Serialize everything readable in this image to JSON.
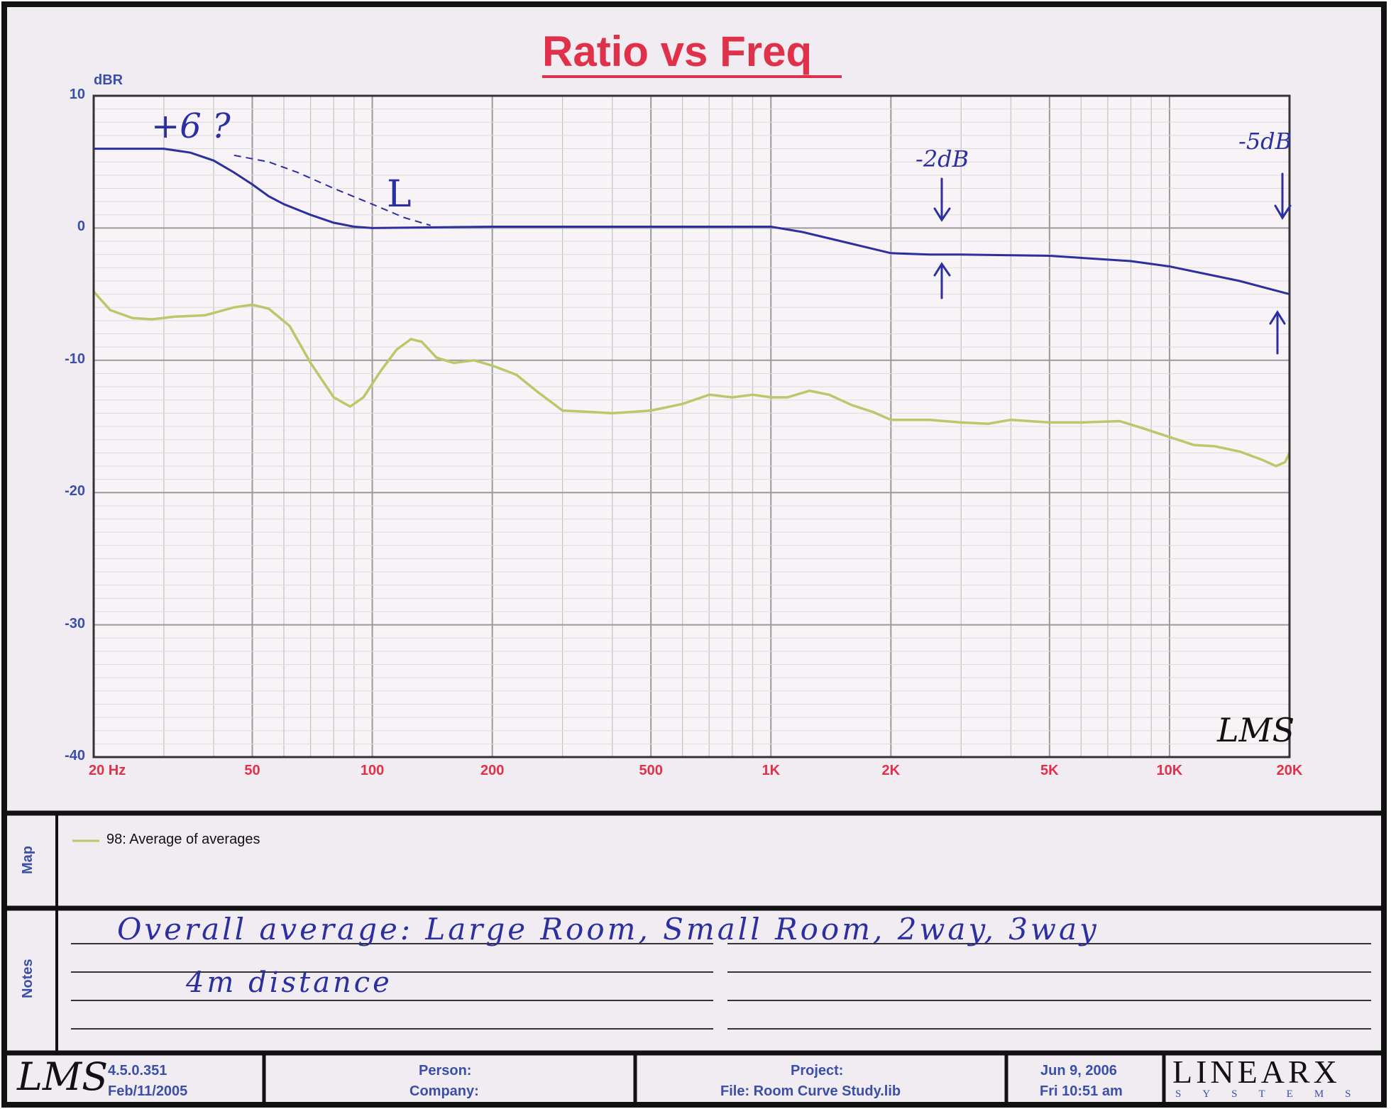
{
  "chart_data": {
    "type": "line",
    "title": "Ratio vs Freq",
    "ylabel": "dBR",
    "x_scale": "log",
    "xlim": [
      20,
      20000
    ],
    "ylim": [
      -40,
      10
    ],
    "x_ticks": [
      20,
      50,
      100,
      200,
      500,
      1000,
      2000,
      5000,
      10000,
      20000
    ],
    "x_tick_labels": [
      "20  Hz",
      "50",
      "100",
      "200",
      "500",
      "1K",
      "2K",
      "5K",
      "10K",
      "20K"
    ],
    "y_ticks": [
      10,
      0,
      -10,
      -20,
      -30,
      -40
    ],
    "y_tick_labels": [
      "10",
      "0",
      "-10",
      "-20",
      "-30",
      "-40"
    ],
    "grid": true,
    "series": [
      {
        "name": "98: Average of averages",
        "color": "#b8c96a",
        "points": [
          [
            20,
            -4.8
          ],
          [
            22,
            -6.2
          ],
          [
            25,
            -6.8
          ],
          [
            28,
            -6.9
          ],
          [
            32,
            -6.7
          ],
          [
            38,
            -6.6
          ],
          [
            45,
            -6.0
          ],
          [
            50,
            -5.8
          ],
          [
            55,
            -6.1
          ],
          [
            62,
            -7.4
          ],
          [
            70,
            -10.2
          ],
          [
            80,
            -12.8
          ],
          [
            88,
            -13.5
          ],
          [
            95,
            -12.8
          ],
          [
            105,
            -10.8
          ],
          [
            115,
            -9.2
          ],
          [
            125,
            -8.4
          ],
          [
            133,
            -8.6
          ],
          [
            145,
            -9.8
          ],
          [
            160,
            -10.2
          ],
          [
            180,
            -10.0
          ],
          [
            200,
            -10.4
          ],
          [
            230,
            -11.1
          ],
          [
            260,
            -12.4
          ],
          [
            300,
            -13.8
          ],
          [
            350,
            -13.9
          ],
          [
            400,
            -14.0
          ],
          [
            450,
            -13.9
          ],
          [
            500,
            -13.8
          ],
          [
            600,
            -13.3
          ],
          [
            700,
            -12.6
          ],
          [
            800,
            -12.8
          ],
          [
            900,
            -12.6
          ],
          [
            1000,
            -12.8
          ],
          [
            1100,
            -12.8
          ],
          [
            1250,
            -12.3
          ],
          [
            1400,
            -12.6
          ],
          [
            1600,
            -13.4
          ],
          [
            1800,
            -13.9
          ],
          [
            2000,
            -14.5
          ],
          [
            2500,
            -14.5
          ],
          [
            3000,
            -14.7
          ],
          [
            3500,
            -14.8
          ],
          [
            4000,
            -14.5
          ],
          [
            5000,
            -14.7
          ],
          [
            6000,
            -14.7
          ],
          [
            7500,
            -14.6
          ],
          [
            8500,
            -15.1
          ],
          [
            10000,
            -15.8
          ],
          [
            11500,
            -16.4
          ],
          [
            13000,
            -16.5
          ],
          [
            15000,
            -16.9
          ],
          [
            17000,
            -17.5
          ],
          [
            18500,
            -18.0
          ],
          [
            19500,
            -17.7
          ],
          [
            20000,
            -17.0
          ]
        ]
      }
    ]
  },
  "handwritten_overlay": {
    "color": "#2b2fa0",
    "target_curve": [
      [
        20,
        6.0
      ],
      [
        25,
        6.0
      ],
      [
        30,
        6.0
      ],
      [
        35,
        5.7
      ],
      [
        40,
        5.1
      ],
      [
        45,
        4.2
      ],
      [
        50,
        3.3
      ],
      [
        55,
        2.4
      ],
      [
        60,
        1.8
      ],
      [
        70,
        1.0
      ],
      [
        80,
        0.4
      ],
      [
        90,
        0.1
      ],
      [
        100,
        0.0
      ],
      [
        200,
        0.1
      ],
      [
        500,
        0.1
      ],
      [
        800,
        0.1
      ],
      [
        1000,
        0.1
      ],
      [
        1200,
        -0.3
      ],
      [
        1500,
        -1.0
      ],
      [
        2000,
        -1.9
      ],
      [
        2500,
        -2.0
      ],
      [
        3000,
        -2.0
      ],
      [
        5000,
        -2.1
      ],
      [
        8000,
        -2.5
      ],
      [
        10000,
        -2.9
      ],
      [
        15000,
        -4.0
      ],
      [
        20000,
        -5.0
      ]
    ],
    "dashed_curve": [
      [
        45,
        5.5
      ],
      [
        55,
        5.0
      ],
      [
        65,
        4.2
      ],
      [
        80,
        3.0
      ],
      [
        100,
        1.8
      ],
      [
        120,
        0.8
      ],
      [
        140,
        0.2
      ]
    ],
    "annotations": [
      "+6 ?",
      "L",
      "-2dB",
      "-5dB"
    ]
  },
  "lms_watermark": "LMS",
  "map_panel": {
    "label": "Map",
    "legend_text": "98: Average of averages"
  },
  "notes_panel": {
    "label": "Notes",
    "handwritten_line1": "Overall average: Large Room, Small Room, 2way, 3way",
    "handwritten_line2": "4m distance"
  },
  "footer": {
    "logo": "LMS",
    "version": "4.5.0.351",
    "version_date": "Feb/11/2005",
    "person_label": "Person:",
    "company_label": "Company:",
    "project_label": "Project:",
    "file_label": "File: Room Curve Study.lib",
    "date": "Jun  9, 2006",
    "time": "Fri 10:51 am",
    "brand_name": "LINEARX",
    "brand_sub": "SYSTEMS"
  }
}
